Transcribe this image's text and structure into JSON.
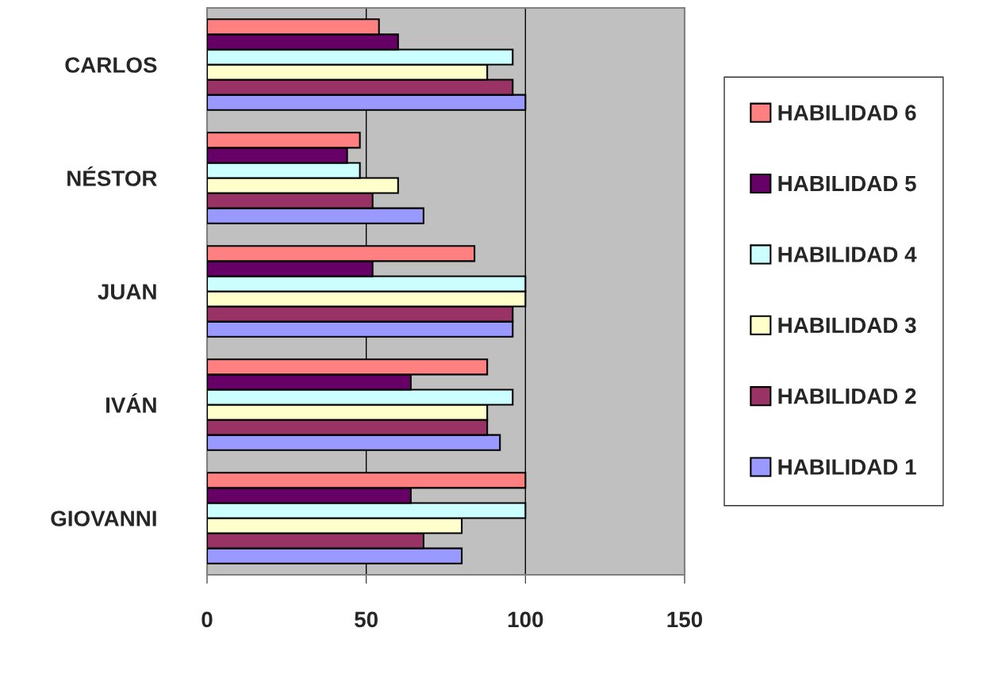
{
  "chart_data": {
    "type": "bar",
    "orientation": "horizontal",
    "categories": [
      "CARLOS",
      "NÉSTOR",
      "JUAN",
      "IVÁN",
      "GIOVANNI"
    ],
    "series": [
      {
        "name": "HABILIDAD 1",
        "color": "#9999ff",
        "values": [
          100,
          68,
          96,
          92,
          80
        ]
      },
      {
        "name": "HABILIDAD 2",
        "color": "#993366",
        "values": [
          96,
          52,
          96,
          88,
          68
        ]
      },
      {
        "name": "HABILIDAD 3",
        "color": "#ffffcc",
        "values": [
          88,
          60,
          100,
          88,
          80
        ]
      },
      {
        "name": "HABILIDAD 4",
        "color": "#ccffff",
        "values": [
          96,
          48,
          100,
          96,
          100
        ]
      },
      {
        "name": "HABILIDAD 5",
        "color": "#660066",
        "values": [
          60,
          44,
          52,
          64,
          64
        ]
      },
      {
        "name": "HABILIDAD 6",
        "color": "#ff8080",
        "values": [
          54,
          48,
          84,
          88,
          100
        ]
      }
    ],
    "xlim": [
      0,
      150
    ],
    "xticks": [
      0,
      50,
      100,
      150
    ],
    "grid": "x",
    "legend": "right"
  }
}
